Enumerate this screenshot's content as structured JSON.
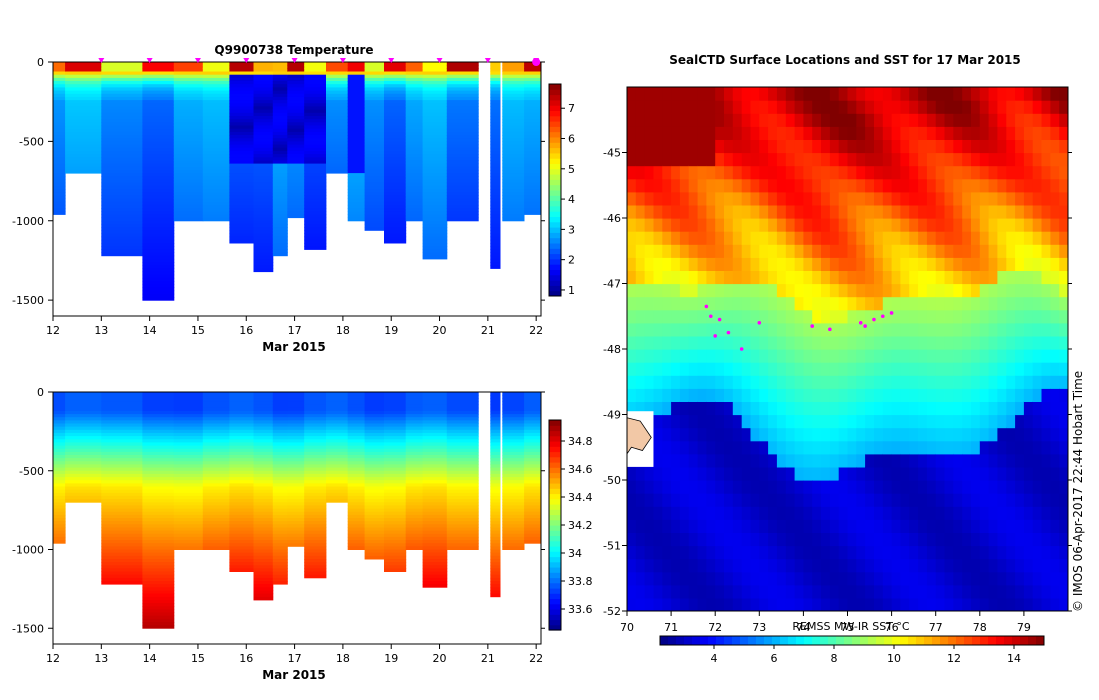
{
  "chart_data": [
    {
      "type": "heatmap",
      "title": "Q9900738  Temperature",
      "xlabel": "Mar 2015",
      "ylabel": "",
      "xlim": [
        12,
        22.1
      ],
      "ylim": [
        -1600,
        0
      ],
      "x_ticks": [
        "12",
        "13",
        "14",
        "15",
        "16",
        "17",
        "18",
        "19",
        "20",
        "21",
        "22"
      ],
      "y_ticks": [
        "0",
        "-500",
        "-1000",
        "-1500"
      ],
      "colorbar": {
        "min": 0.8,
        "max": 7.8,
        "ticks": [
          "1",
          "2",
          "3",
          "4",
          "5",
          "6",
          "7"
        ]
      },
      "profile_markers_color": "#ff00ff",
      "profiles": [
        {
          "x": 12.0,
          "depth": -960
        },
        {
          "x": 12.5,
          "depth": -700
        },
        {
          "x": 13.5,
          "depth": -1220
        },
        {
          "x": 14.2,
          "depth": -1500
        },
        {
          "x": 14.8,
          "depth": -1000
        },
        {
          "x": 15.4,
          "depth": -1000
        },
        {
          "x": 15.9,
          "depth": -1140
        },
        {
          "x": 16.4,
          "depth": -1320
        },
        {
          "x": 16.7,
          "depth": -1220
        },
        {
          "x": 17.0,
          "depth": -980
        },
        {
          "x": 17.4,
          "depth": -1170
        },
        {
          "x": 17.9,
          "depth": -700
        },
        {
          "x": 18.3,
          "depth": -1000
        },
        {
          "x": 18.6,
          "depth": -1060
        },
        {
          "x": 19.1,
          "depth": -1140
        },
        {
          "x": 19.5,
          "depth": -1000
        },
        {
          "x": 19.8,
          "depth": -1240
        },
        {
          "x": 20.5,
          "depth": -1000
        },
        {
          "x": 21.1,
          "depth": -1300
        },
        {
          "x": 21.5,
          "depth": -1000
        },
        {
          "x": 22.0,
          "depth": -950
        }
      ]
    },
    {
      "type": "heatmap",
      "title": "",
      "xlabel": "Mar 2015",
      "ylabel": "",
      "xlim": [
        12,
        22.1
      ],
      "ylim": [
        -1600,
        0
      ],
      "x_ticks": [
        "12",
        "13",
        "14",
        "15",
        "16",
        "17",
        "18",
        "19",
        "20",
        "21",
        "22"
      ],
      "y_ticks": [
        "0",
        "-500",
        "-1000",
        "-1500"
      ],
      "colorbar": {
        "min": 33.45,
        "max": 34.95,
        "ticks": [
          "33.6",
          "33.8",
          "34",
          "34.2",
          "34.4",
          "34.6",
          "34.8"
        ]
      }
    },
    {
      "type": "heatmap",
      "title": "SealCTD Surface Locations and SST for 17 Mar 2015",
      "xlabel": "",
      "ylabel": "",
      "xlim": [
        70,
        80
      ],
      "ylim": [
        -52,
        -44
      ],
      "x_ticks": [
        "70",
        "71",
        "72",
        "73",
        "74",
        "75",
        "76",
        "77",
        "78",
        "79"
      ],
      "y_ticks": [
        "-45",
        "-46",
        "-47",
        "-48",
        "-49",
        "-50",
        "-51",
        "-52"
      ],
      "colorbar": {
        "label": "REMSS MW-IR SST °C",
        "min": 2.2,
        "max": 15.0,
        "ticks": [
          "4",
          "6",
          "8",
          "10",
          "12",
          "14"
        ]
      },
      "surface_locations_color": "#ff00ff"
    }
  ],
  "credit": "© IMOS 06-Apr-2017 22:44 Hobart Time"
}
